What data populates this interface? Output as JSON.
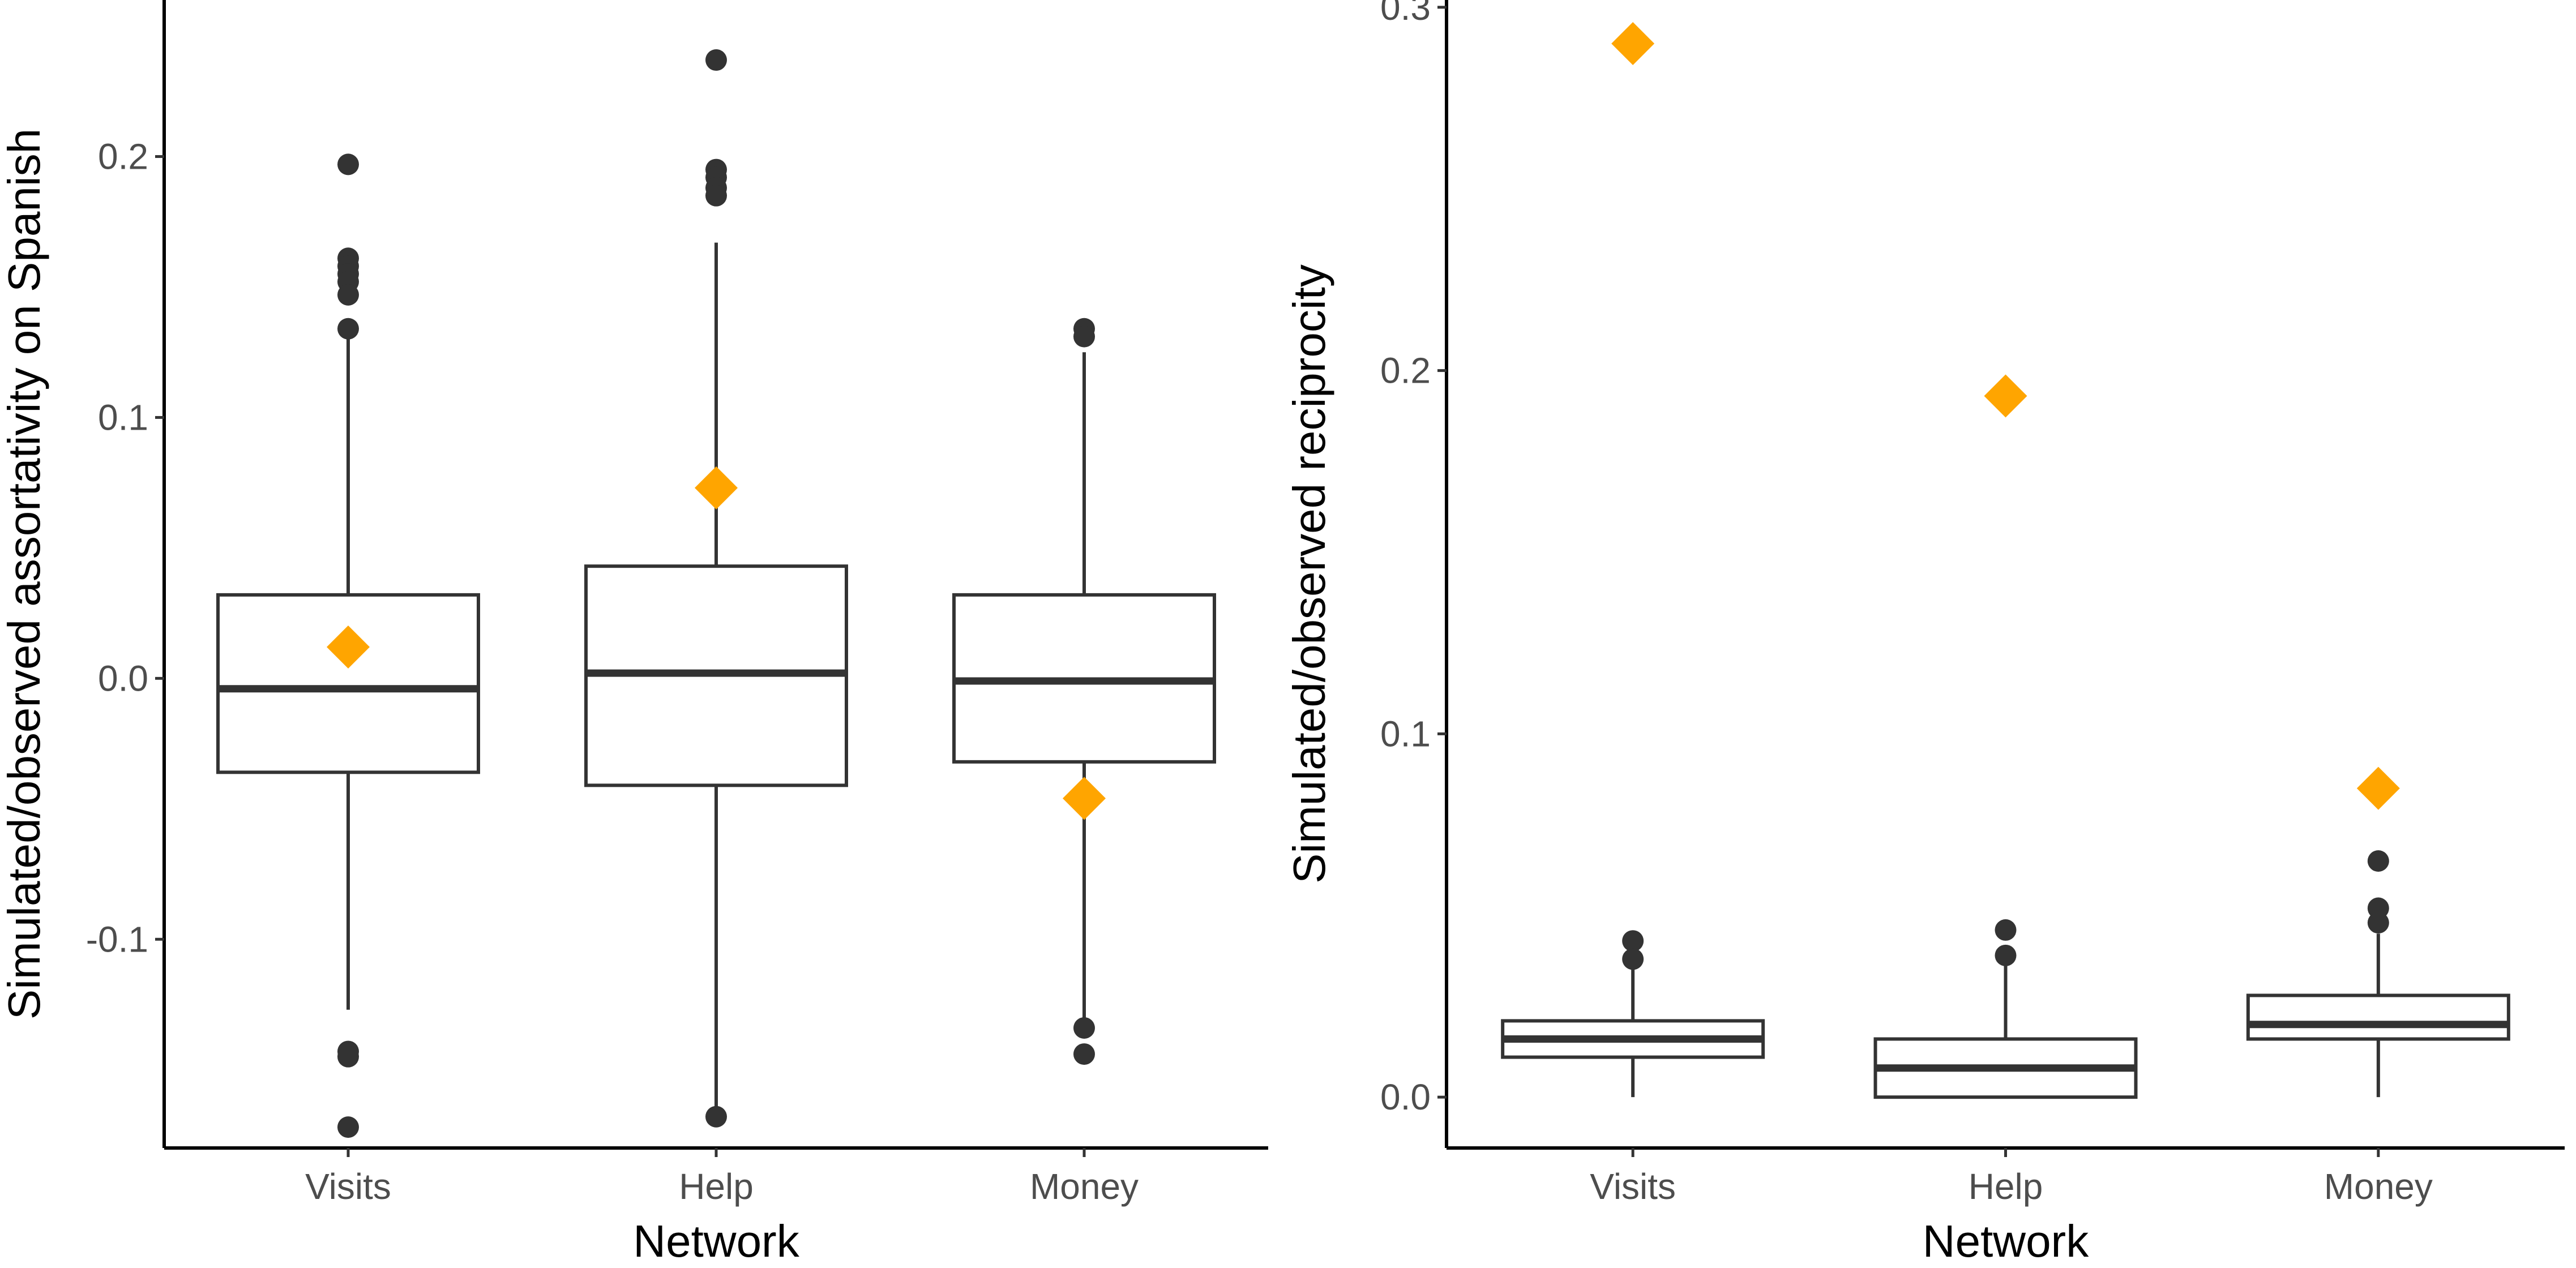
{
  "colors": {
    "box_fill": "#ffffff",
    "box_line": "#333333",
    "outlier": "#333333",
    "observed_marker": "#FFA500",
    "axis": "#000000",
    "tick_text": "#4d4d4d"
  },
  "chart_data": [
    {
      "type": "box",
      "title": "",
      "xlabel": "Network",
      "ylabel": "Simulated/observed assortativity on Spanish",
      "ylim": [
        -0.18,
        0.26
      ],
      "yticks": [
        -0.1,
        0.0,
        0.1,
        0.2
      ],
      "ytick_labels": [
        "-0.1",
        "0.0",
        "0.1",
        "0.2"
      ],
      "categories": [
        "Visits",
        "Help",
        "Money"
      ],
      "series": [
        {
          "name": "Visits",
          "q1": -0.036,
          "median": -0.004,
          "q3": 0.032,
          "whisker_low": -0.127,
          "whisker_high": 0.132,
          "outliers": [
            0.197,
            0.161,
            0.158,
            0.155,
            0.152,
            0.147,
            0.134,
            -0.143,
            -0.145,
            -0.172
          ],
          "observed": 0.012
        },
        {
          "name": "Help",
          "q1": -0.041,
          "median": 0.002,
          "q3": 0.043,
          "whisker_low": -0.168,
          "whisker_high": 0.167,
          "outliers": [
            0.237,
            0.195,
            0.192,
            0.188,
            0.185,
            -0.168
          ],
          "observed": 0.073
        },
        {
          "name": "Money",
          "q1": -0.032,
          "median": -0.001,
          "q3": 0.032,
          "whisker_low": -0.131,
          "whisker_high": 0.125,
          "outliers": [
            0.134,
            0.131,
            -0.134,
            -0.144
          ],
          "observed": -0.046
        }
      ]
    },
    {
      "type": "box",
      "title": "",
      "xlabel": "Network",
      "ylabel": "Simulated/observed reciprocity",
      "ylim": [
        -0.014,
        0.302
      ],
      "yticks": [
        0.0,
        0.1,
        0.2,
        0.3
      ],
      "ytick_labels": [
        "0.0",
        "0.1",
        "0.2",
        "0.3"
      ],
      "categories": [
        "Visits",
        "Help",
        "Money"
      ],
      "series": [
        {
          "name": "Visits",
          "q1": 0.011,
          "median": 0.016,
          "q3": 0.021,
          "whisker_low": 0.0,
          "whisker_high": 0.036,
          "outliers": [
            0.043,
            0.038
          ],
          "observed": 0.29
        },
        {
          "name": "Help",
          "q1": 0.0,
          "median": 0.008,
          "q3": 0.016,
          "whisker_low": 0.0,
          "whisker_high": 0.038,
          "outliers": [
            0.046,
            0.039
          ],
          "observed": 0.193
        },
        {
          "name": "Money",
          "q1": 0.016,
          "median": 0.02,
          "q3": 0.028,
          "whisker_low": 0.0,
          "whisker_high": 0.045,
          "outliers": [
            0.065,
            0.052,
            0.048
          ],
          "observed": 0.085
        }
      ]
    }
  ]
}
